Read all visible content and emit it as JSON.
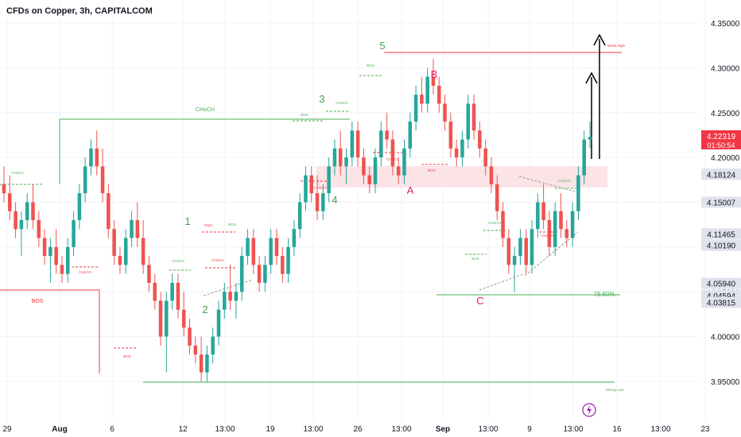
{
  "header": {
    "title": "CFDs on Copper, 3h, CAPITALCOM"
  },
  "colors": {
    "up": "#26a69a",
    "down": "#ef5350",
    "green_line": "#4caf50",
    "red_line": "#f23645",
    "zone": "#fbe3e6",
    "price_tag_bg": "#f23645",
    "level_tag_bg": "#e0e3eb",
    "axis_text": "#131722",
    "purple_icon": "#9c27b0"
  },
  "chart_data": {
    "type": "candlestick",
    "title": "CFDs on Copper, 3h, CAPITALCOM",
    "symbol": "CFDs on Copper",
    "timeframe": "3h",
    "ylim": [
      3.925,
      4.36
    ],
    "y_ticks": [
      "4.35000",
      "4.30000",
      "4.25000",
      "4.20000",
      "4.15000",
      "4.10000",
      "4.05000",
      "4.00000",
      "3.95000"
    ],
    "x_ticks": [
      "29",
      "Aug",
      "6",
      "12",
      "13:00",
      "19",
      "13:00",
      "26",
      "13:00",
      "Sep",
      "13:00",
      "9",
      "13:00",
      "16",
      "13:00",
      "23"
    ],
    "price_labels": [
      {
        "price": 4.22319,
        "text": "4.22319",
        "sub": "01:50:54",
        "style": "current"
      },
      {
        "price": 4.18124,
        "text": "4.18124",
        "style": "level"
      },
      {
        "price": 4.15007,
        "text": "4.15007",
        "style": "level"
      },
      {
        "price": 4.11465,
        "text": "4.11465",
        "style": "level"
      },
      {
        "price": 4.1019,
        "text": "4.10190",
        "style": "level"
      },
      {
        "price": 4.0594,
        "text": "4.05940",
        "style": "level"
      },
      {
        "price": 4.04594,
        "text": "4.04594",
        "style": "level"
      },
      {
        "price": 4.03815,
        "text": "4.03815",
        "style": "level"
      }
    ],
    "candles": [
      [
        4.17,
        4.19,
        4.15,
        4.16
      ],
      [
        4.16,
        4.18,
        4.13,
        4.14
      ],
      [
        4.14,
        4.15,
        4.11,
        4.12
      ],
      [
        4.12,
        4.14,
        4.09,
        4.13
      ],
      [
        4.13,
        4.16,
        4.12,
        4.15
      ],
      [
        4.15,
        4.17,
        4.12,
        4.13
      ],
      [
        4.13,
        4.14,
        4.1,
        4.11
      ],
      [
        4.11,
        4.12,
        4.08,
        4.09
      ],
      [
        4.09,
        4.11,
        4.06,
        4.1
      ],
      [
        4.1,
        4.12,
        4.07,
        4.08
      ],
      [
        4.08,
        4.09,
        4.06,
        4.07
      ],
      [
        4.07,
        4.11,
        4.06,
        4.1
      ],
      [
        4.1,
        4.14,
        4.09,
        4.13
      ],
      [
        4.13,
        4.17,
        4.12,
        4.16
      ],
      [
        4.16,
        4.2,
        4.15,
        4.19
      ],
      [
        4.19,
        4.22,
        4.18,
        4.21
      ],
      [
        4.21,
        4.23,
        4.18,
        4.19
      ],
      [
        4.19,
        4.21,
        4.15,
        4.16
      ],
      [
        4.16,
        4.17,
        4.11,
        4.12
      ],
      [
        4.12,
        4.13,
        4.08,
        4.09
      ],
      [
        4.09,
        4.1,
        4.07,
        4.08
      ],
      [
        4.08,
        4.12,
        4.07,
        4.11
      ],
      [
        4.11,
        4.14,
        4.1,
        4.13
      ],
      [
        4.13,
        4.15,
        4.1,
        4.11
      ],
      [
        4.11,
        4.13,
        4.07,
        4.08
      ],
      [
        4.08,
        4.09,
        4.05,
        4.06
      ],
      [
        4.06,
        4.07,
        4.03,
        4.04
      ],
      [
        4.04,
        4.05,
        3.99,
        4.0
      ],
      [
        4.0,
        4.05,
        3.96,
        4.04
      ],
      [
        4.04,
        4.07,
        4.03,
        4.06
      ],
      [
        4.06,
        4.07,
        4.02,
        4.03
      ],
      [
        4.03,
        4.05,
        4.0,
        4.01
      ],
      [
        4.01,
        4.02,
        3.98,
        3.99
      ],
      [
        3.99,
        4.0,
        3.97,
        3.98
      ],
      [
        3.98,
        4.0,
        3.95,
        3.96
      ],
      [
        3.96,
        3.99,
        3.95,
        3.98
      ],
      [
        3.98,
        4.01,
        3.97,
        4.0
      ],
      [
        4.0,
        4.04,
        3.99,
        4.03
      ],
      [
        4.03,
        4.06,
        4.02,
        4.05
      ],
      [
        4.05,
        4.08,
        4.03,
        4.04
      ],
      [
        4.04,
        4.06,
        4.02,
        4.05
      ],
      [
        4.05,
        4.1,
        4.04,
        4.09
      ],
      [
        4.09,
        4.12,
        4.08,
        4.11
      ],
      [
        4.11,
        4.12,
        4.07,
        4.08
      ],
      [
        4.08,
        4.09,
        4.05,
        4.06
      ],
      [
        4.06,
        4.09,
        4.05,
        4.08
      ],
      [
        4.08,
        4.12,
        4.07,
        4.11
      ],
      [
        4.11,
        4.12,
        4.08,
        4.09
      ],
      [
        4.09,
        4.1,
        4.06,
        4.07
      ],
      [
        4.07,
        4.11,
        4.06,
        4.1
      ],
      [
        4.1,
        4.13,
        4.09,
        4.12
      ],
      [
        4.12,
        4.16,
        4.11,
        4.15
      ],
      [
        4.15,
        4.19,
        4.14,
        4.18
      ],
      [
        4.18,
        4.19,
        4.15,
        4.16
      ],
      [
        4.16,
        4.18,
        4.13,
        4.14
      ],
      [
        4.14,
        4.17,
        4.13,
        4.16
      ],
      [
        4.16,
        4.2,
        4.15,
        4.19
      ],
      [
        4.19,
        4.22,
        4.18,
        4.21
      ],
      [
        4.21,
        4.23,
        4.18,
        4.19
      ],
      [
        4.19,
        4.21,
        4.17,
        4.2
      ],
      [
        4.2,
        4.24,
        4.19,
        4.23
      ],
      [
        4.23,
        4.24,
        4.19,
        4.2
      ],
      [
        4.2,
        4.21,
        4.17,
        4.18
      ],
      [
        4.18,
        4.19,
        4.16,
        4.17
      ],
      [
        4.17,
        4.21,
        4.16,
        4.2
      ],
      [
        4.2,
        4.24,
        4.19,
        4.23
      ],
      [
        4.23,
        4.25,
        4.21,
        4.22
      ],
      [
        4.22,
        4.23,
        4.18,
        4.19
      ],
      [
        4.19,
        4.2,
        4.17,
        4.18
      ],
      [
        4.18,
        4.22,
        4.17,
        4.21
      ],
      [
        4.21,
        4.25,
        4.2,
        4.24
      ],
      [
        4.24,
        4.28,
        4.23,
        4.27
      ],
      [
        4.27,
        4.29,
        4.25,
        4.26
      ],
      [
        4.26,
        4.3,
        4.25,
        4.29
      ],
      [
        4.29,
        4.31,
        4.27,
        4.28
      ],
      [
        4.28,
        4.29,
        4.25,
        4.26
      ],
      [
        4.26,
        4.27,
        4.23,
        4.24
      ],
      [
        4.24,
        4.25,
        4.2,
        4.21
      ],
      [
        4.21,
        4.22,
        4.19,
        4.2
      ],
      [
        4.2,
        4.23,
        4.19,
        4.22
      ],
      [
        4.22,
        4.27,
        4.21,
        4.26
      ],
      [
        4.26,
        4.27,
        4.22,
        4.23
      ],
      [
        4.23,
        4.24,
        4.2,
        4.21
      ],
      [
        4.21,
        4.22,
        4.18,
        4.19
      ],
      [
        4.19,
        4.2,
        4.16,
        4.17
      ],
      [
        4.17,
        4.18,
        4.13,
        4.14
      ],
      [
        4.14,
        4.15,
        4.1,
        4.11
      ],
      [
        4.11,
        4.12,
        4.07,
        4.08
      ],
      [
        4.08,
        4.1,
        4.05,
        4.09
      ],
      [
        4.09,
        4.12,
        4.08,
        4.11
      ],
      [
        4.11,
        4.12,
        4.07,
        4.08
      ],
      [
        4.08,
        4.13,
        4.07,
        4.12
      ],
      [
        4.12,
        4.16,
        4.11,
        4.15
      ],
      [
        4.15,
        4.17,
        4.12,
        4.13
      ],
      [
        4.13,
        4.14,
        4.09,
        4.1
      ],
      [
        4.1,
        4.15,
        4.09,
        4.14
      ],
      [
        4.14,
        4.16,
        4.11,
        4.12
      ],
      [
        4.12,
        4.13,
        4.1,
        4.11
      ],
      [
        4.11,
        4.15,
        4.1,
        4.14
      ],
      [
        4.14,
        4.19,
        4.13,
        4.18
      ],
      [
        4.18,
        4.23,
        4.17,
        4.22
      ],
      [
        4.22,
        4.24,
        4.21,
        4.223
      ]
    ],
    "annotations": {
      "wave_labels": [
        {
          "text": "1",
          "x": 236,
          "y": 283,
          "color": "green"
        },
        {
          "text": "2",
          "x": 258,
          "y": 394,
          "color": "green"
        },
        {
          "text": "3",
          "x": 405,
          "y": 129,
          "color": "green"
        },
        {
          "text": "4",
          "x": 421,
          "y": 256,
          "color": "green"
        },
        {
          "text": "5",
          "x": 481,
          "y": 62,
          "color": "green"
        },
        {
          "text": "A",
          "x": 516,
          "y": 244,
          "color": "red"
        },
        {
          "text": "B",
          "x": 546,
          "y": 98,
          "color": "red"
        },
        {
          "text": "C",
          "x": 604,
          "y": 383,
          "color": "red"
        }
      ],
      "texts": [
        {
          "text": "CHoCH",
          "x": 258,
          "y": 140,
          "size": 7,
          "color": "green"
        },
        {
          "text": "BOS",
          "x": 47,
          "y": 381,
          "size": 7,
          "color": "red"
        },
        {
          "text": "78.60%",
          "x": 760,
          "y": 373,
          "size": 8,
          "color": "green"
        },
        {
          "text": "Weak High",
          "x": 775,
          "y": 59,
          "size": 4.5,
          "color": "red"
        },
        {
          "text": "Strong Low",
          "x": 773,
          "y": 492,
          "size": 4.5,
          "color": "green"
        },
        {
          "text": "CHoCH",
          "x": 22,
          "y": 219,
          "size": 4.5,
          "color": "green"
        },
        {
          "text": "CHoCH",
          "x": 107,
          "y": 344,
          "size": 4.5,
          "color": "red"
        },
        {
          "text": "CHoCH",
          "x": 224,
          "y": 330,
          "size": 4.5,
          "color": "green"
        },
        {
          "text": "EQH",
          "x": 262,
          "y": 285,
          "size": 4.5,
          "color": "red"
        },
        {
          "text": "BOS",
          "x": 292,
          "y": 284,
          "size": 4.5,
          "color": "green"
        },
        {
          "text": "CHoCH",
          "x": 274,
          "y": 329,
          "size": 4.5,
          "color": "red"
        },
        {
          "text": "BOS",
          "x": 160,
          "y": 450,
          "size": 4.5,
          "color": "red"
        },
        {
          "text": "BOS",
          "x": 383,
          "y": 146,
          "size": 4.5,
          "color": "green"
        },
        {
          "text": "CHoCH",
          "x": 430,
          "y": 131,
          "size": 4.5,
          "color": "green"
        },
        {
          "text": "BOS",
          "x": 466,
          "y": 84,
          "size": 4.5,
          "color": "green"
        },
        {
          "text": "CHoCH",
          "x": 403,
          "y": 238,
          "size": 4.5,
          "color": "red"
        },
        {
          "text": "CHoCH",
          "x": 494,
          "y": 202,
          "size": 4.5,
          "color": "red"
        },
        {
          "text": "BOS",
          "x": 543,
          "y": 216,
          "size": 4.5,
          "color": "red"
        },
        {
          "text": "CHoCH",
          "x": 622,
          "y": 282,
          "size": 4.5,
          "color": "green"
        },
        {
          "text": "BOS",
          "x": 598,
          "y": 327,
          "size": 4.5,
          "color": "green"
        },
        {
          "text": "CHoCH",
          "x": 688,
          "y": 298,
          "size": 4.5,
          "color": "red"
        },
        {
          "text": "CHoCH",
          "x": 710,
          "y": 229,
          "size": 4.5,
          "color": "green"
        }
      ]
    }
  }
}
